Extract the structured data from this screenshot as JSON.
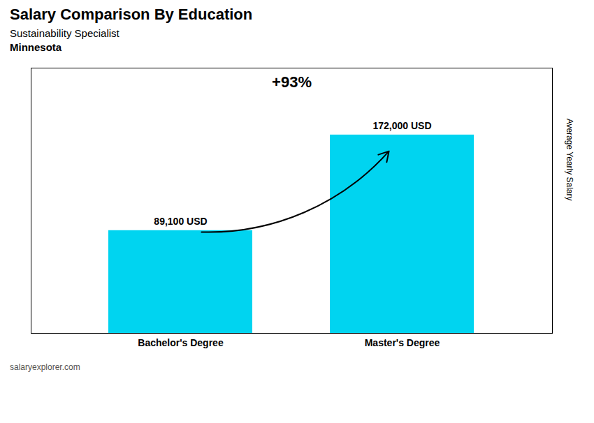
{
  "chart_data": {
    "type": "bar",
    "title": "Salary Comparison By Education",
    "subtitle": [
      "Sustainability Specialist",
      "Minnesota"
    ],
    "source": "salaryexplorer.com",
    "categories": [
      "Bachelor's Degree",
      "Master's Degree"
    ],
    "values": [
      89100,
      172000
    ],
    "value_labels": [
      "89,100 USD",
      "172,000 USD"
    ],
    "data_labels": true,
    "annotations": [
      "+93%"
    ],
    "color": "#00d4f0",
    "y_label": "Average Yearly Salary",
    "ylim": [
      0,
      230000
    ],
    "yticks": [],
    "tick_labels": "x",
    "grid": false
  }
}
